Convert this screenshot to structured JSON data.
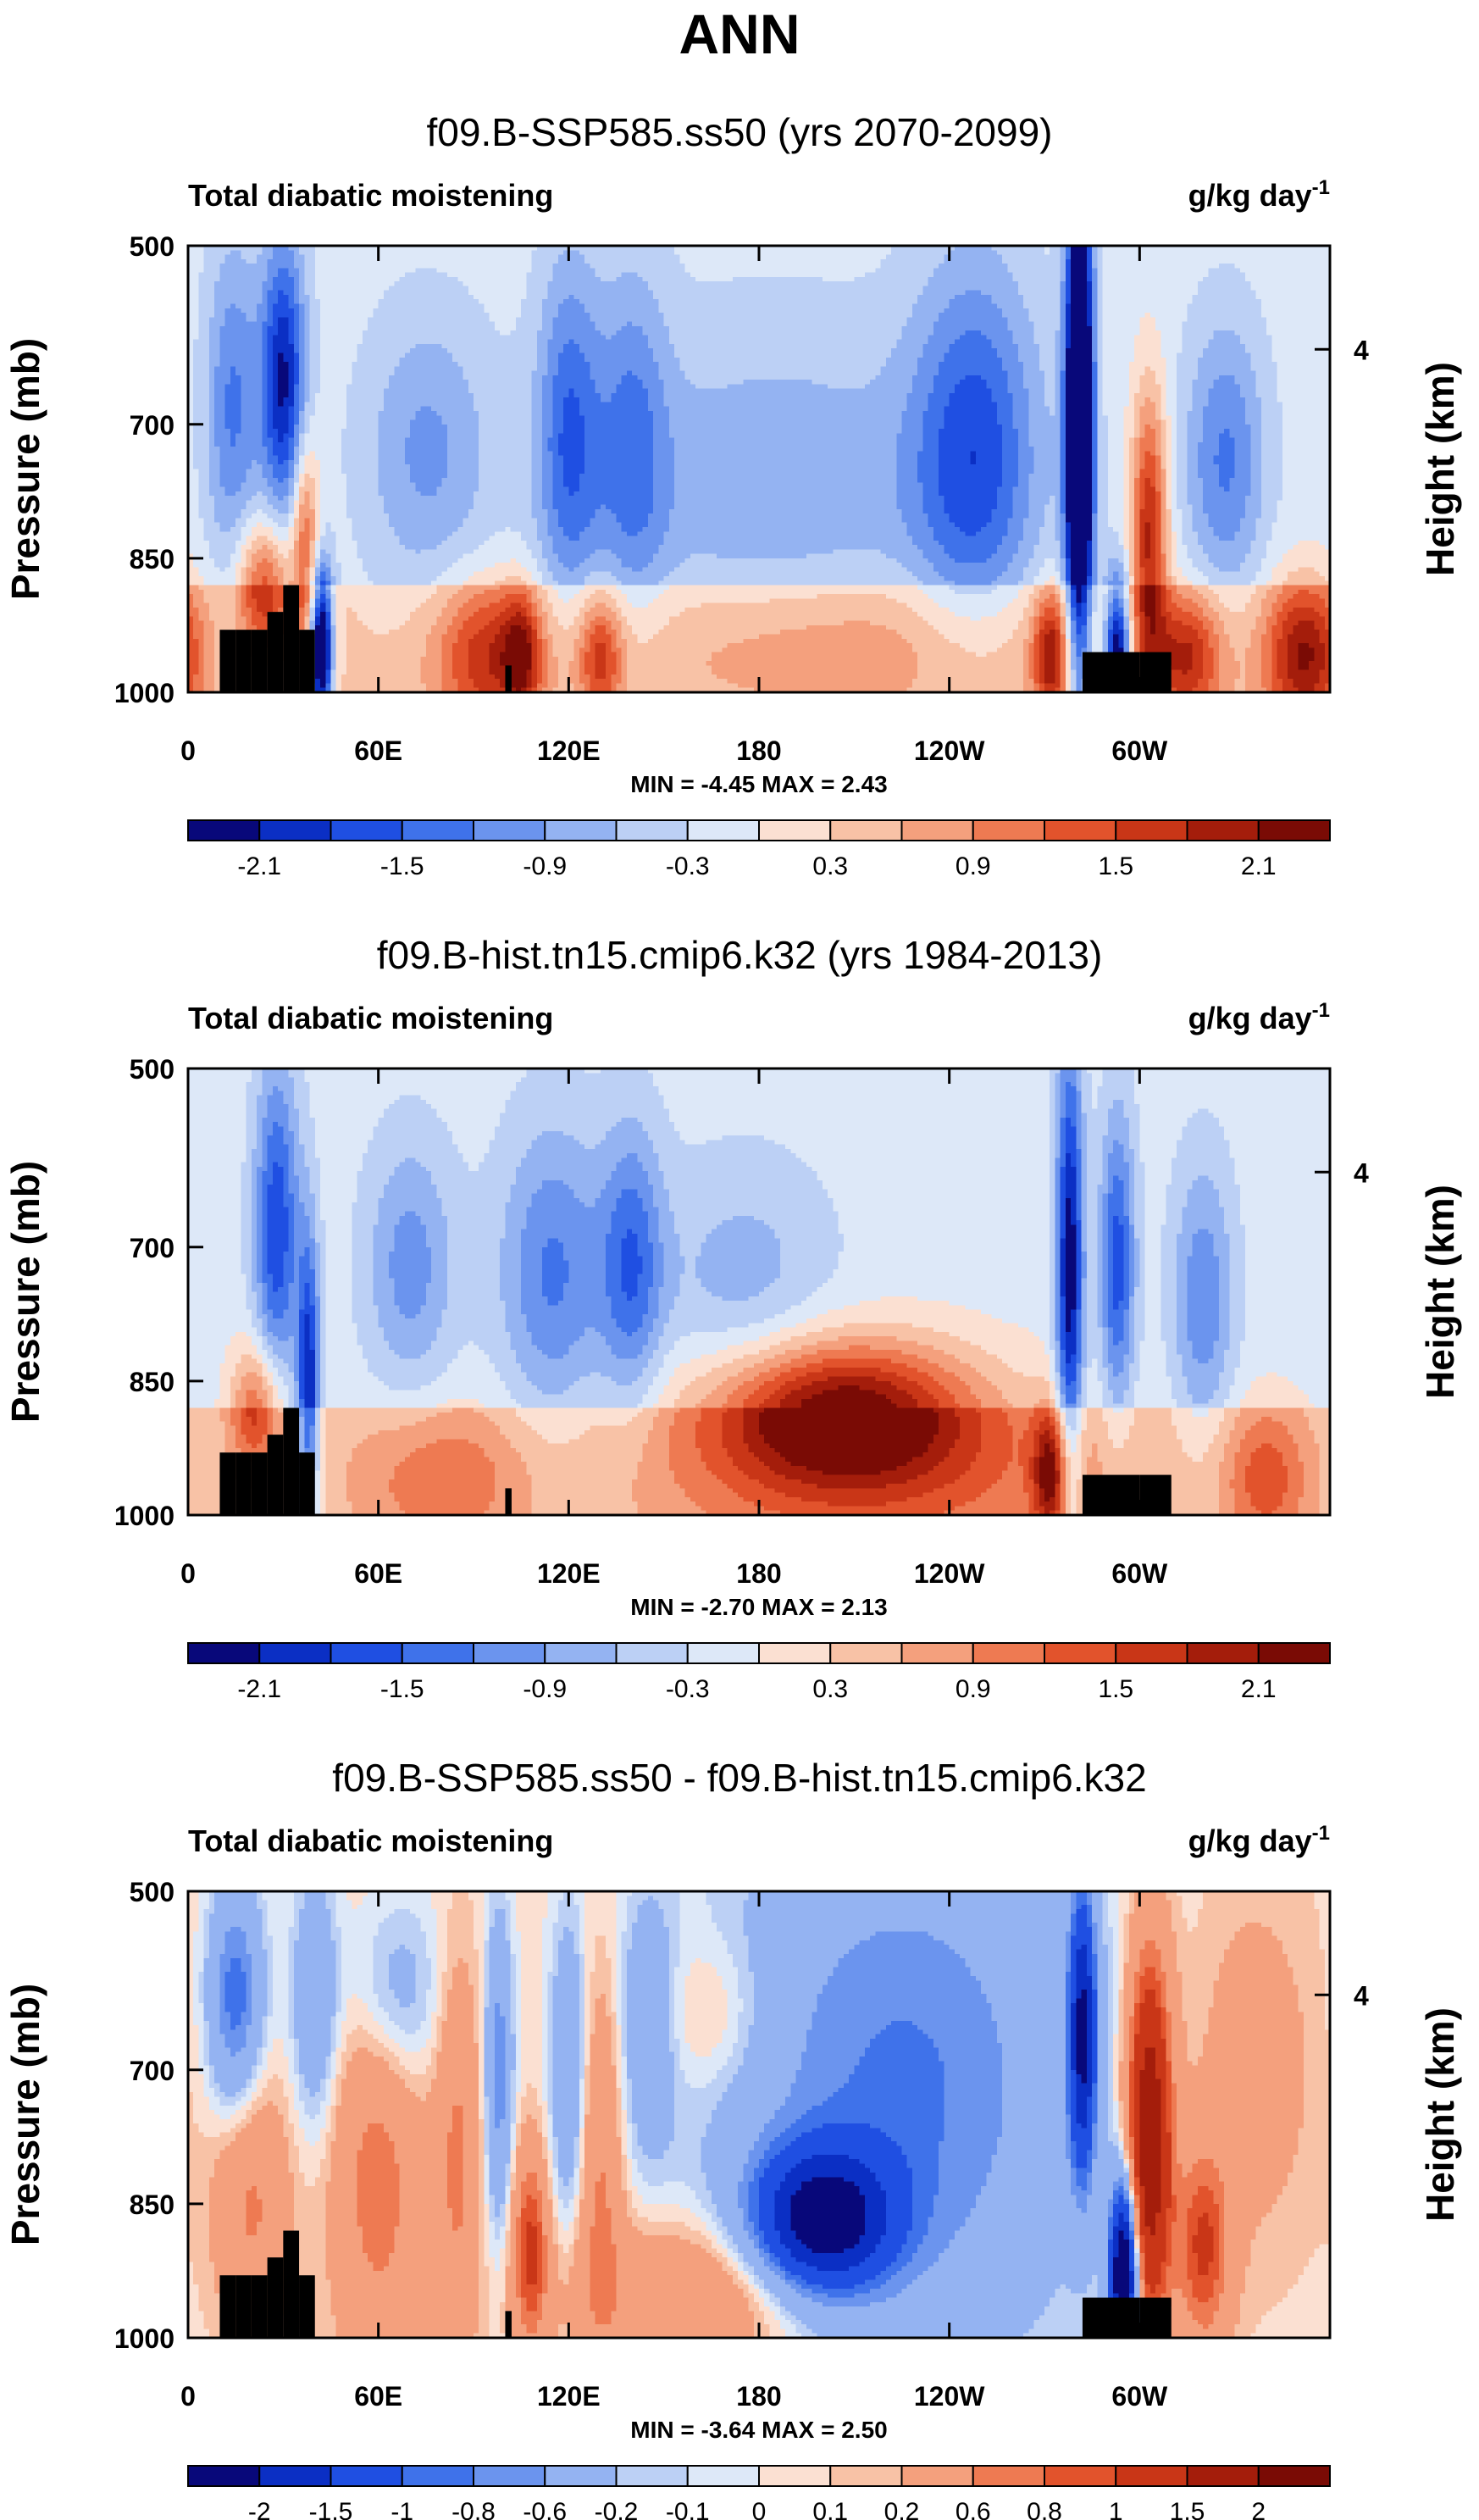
{
  "figure_title": "ANN",
  "colors": {
    "blue_scale": [
      "#08087a",
      "#0b2fc4",
      "#1f4fe2",
      "#3f72ea",
      "#6b94ee",
      "#94b3f2",
      "#bcd0f5",
      "#dde8f8"
    ],
    "red_scale": [
      "#fbe0d2",
      "#f8c2a6",
      "#f4a07d",
      "#ee7a52",
      "#e2532c",
      "#c93617",
      "#a41d0b",
      "#7a0b05"
    ],
    "terrain": "#000000"
  },
  "chart_data": [
    {
      "type": "heatmap",
      "title": "f09.B-SSP585.ss50 (yrs 2070-2099)",
      "left_label": "Total diabatic moistening",
      "right_label": "g/kg day",
      "right_label_sup": "-1",
      "ylabel": "Pressure (mb)",
      "ylabel_right": "Height (km)",
      "yticks": [
        "500",
        "700",
        "850",
        "1000"
      ],
      "ytick_values": [
        500,
        700,
        850,
        1000
      ],
      "yright_ticks": [
        "4"
      ],
      "yright_tick_pressures": [
        616
      ],
      "xticks": [
        "0",
        "60E",
        "120E",
        "180",
        "120W",
        "60W"
      ],
      "xtick_values": [
        0,
        60,
        120,
        180,
        240,
        300
      ],
      "xlim": [
        0,
        360
      ],
      "ylim": [
        1000,
        500
      ],
      "stats": "MIN = -4.45  MAX =  2.43",
      "colorbar_labels": [
        "-2.1",
        "-1.5",
        "-0.9",
        "-0.3",
        "0.3",
        "0.9",
        "1.5",
        "2.1"
      ],
      "colorbar_levels": [
        -2.4,
        -2.1,
        -1.8,
        -1.5,
        -1.2,
        -0.9,
        -0.6,
        -0.3,
        0,
        0.3,
        0.6,
        0.9,
        1.2,
        1.5,
        1.8,
        2.1
      ],
      "features": [
        {
          "lon": 30,
          "p": 650,
          "amp": -2.0,
          "slon": 5,
          "sp": 110
        },
        {
          "lon": 14,
          "p": 680,
          "amp": -1.1,
          "slon": 6,
          "sp": 130
        },
        {
          "lon": 24,
          "p": 880,
          "amp": 1.6,
          "slon": 6,
          "sp": 50
        },
        {
          "lon": 37,
          "p": 830,
          "amp": 1.4,
          "slon": 3,
          "sp": 80
        },
        {
          "lon": 42,
          "p": 950,
          "amp": -3.4,
          "slon": 2.5,
          "sp": 60
        },
        {
          "lon": 75,
          "p": 730,
          "amp": -0.8,
          "slon": 14,
          "sp": 110
        },
        {
          "lon": 95,
          "p": 960,
          "amp": 1.4,
          "slon": 12,
          "sp": 60
        },
        {
          "lon": 120,
          "p": 710,
          "amp": -1.2,
          "slon": 7,
          "sp": 140
        },
        {
          "lon": 140,
          "p": 720,
          "amp": -0.9,
          "slon": 8,
          "sp": 140
        },
        {
          "lon": 105,
          "p": 960,
          "amp": 1.2,
          "slon": 4,
          "sp": 50
        },
        {
          "lon": 130,
          "p": 960,
          "amp": 1.3,
          "slon": 5,
          "sp": 50
        },
        {
          "lon": 185,
          "p": 780,
          "amp": -0.7,
          "slon": 45,
          "sp": 140
        },
        {
          "lon": 205,
          "p": 950,
          "amp": 0.7,
          "slon": 55,
          "sp": 60
        },
        {
          "lon": 248,
          "p": 730,
          "amp": -1.4,
          "slon": 14,
          "sp": 150
        },
        {
          "lon": 281,
          "p": 710,
          "amp": -3.9,
          "slon": 3,
          "sp": 210
        },
        {
          "lon": 293,
          "p": 960,
          "amp": -3.0,
          "slon": 3,
          "sp": 60
        },
        {
          "lon": 303,
          "p": 820,
          "amp": 2.0,
          "slon": 4,
          "sp": 110
        },
        {
          "lon": 272,
          "p": 960,
          "amp": 1.6,
          "slon": 4,
          "sp": 50
        },
        {
          "lon": 327,
          "p": 740,
          "amp": -1.1,
          "slon": 9,
          "sp": 110
        },
        {
          "lon": 352,
          "p": 960,
          "amp": 1.8,
          "slon": 9,
          "sp": 60
        },
        {
          "lon": 315,
          "p": 960,
          "amp": 1.5,
          "slon": 8,
          "sp": 50
        }
      ]
    },
    {
      "type": "heatmap",
      "title": "f09.B-hist.tn15.cmip6.k32 (yrs 1984-2013)",
      "left_label": "Total diabatic moistening",
      "right_label": "g/kg day",
      "right_label_sup": "-1",
      "ylabel": "Pressure (mb)",
      "ylabel_right": "Height (km)",
      "yticks": [
        "500",
        "700",
        "850",
        "1000"
      ],
      "ytick_values": [
        500,
        700,
        850,
        1000
      ],
      "yright_ticks": [
        "4"
      ],
      "yright_tick_pressures": [
        616
      ],
      "xticks": [
        "0",
        "60E",
        "120E",
        "180",
        "120W",
        "60W"
      ],
      "xtick_values": [
        0,
        60,
        120,
        180,
        240,
        300
      ],
      "xlim": [
        0,
        360
      ],
      "ylim": [
        1000,
        500
      ],
      "stats": "MIN = -2.70  MAX =  2.13",
      "colorbar_labels": [
        "-2.1",
        "-1.5",
        "-0.9",
        "-0.3",
        "0.3",
        "0.9",
        "1.5",
        "2.1"
      ],
      "colorbar_levels": [
        -2.4,
        -2.1,
        -1.8,
        -1.5,
        -1.2,
        -0.9,
        -0.6,
        -0.3,
        0,
        0.3,
        0.6,
        0.9,
        1.2,
        1.5,
        1.8,
        2.1
      ],
      "features": [
        {
          "lon": 28,
          "p": 680,
          "amp": -1.6,
          "slon": 5,
          "sp": 130
        },
        {
          "lon": 38,
          "p": 860,
          "amp": -1.9,
          "slon": 2.5,
          "sp": 120
        },
        {
          "lon": 22,
          "p": 880,
          "amp": 1.4,
          "slon": 6,
          "sp": 50
        },
        {
          "lon": 70,
          "p": 720,
          "amp": -0.9,
          "slon": 10,
          "sp": 100
        },
        {
          "lon": 115,
          "p": 730,
          "amp": -1.1,
          "slon": 12,
          "sp": 120
        },
        {
          "lon": 140,
          "p": 720,
          "amp": -1.2,
          "slon": 7,
          "sp": 110
        },
        {
          "lon": 175,
          "p": 740,
          "amp": -0.6,
          "slon": 20,
          "sp": 100
        },
        {
          "lon": 80,
          "p": 960,
          "amp": 0.8,
          "slon": 20,
          "sp": 60
        },
        {
          "lon": 205,
          "p": 880,
          "amp": 2.0,
          "slon": 28,
          "sp": 55
        },
        {
          "lon": 215,
          "p": 950,
          "amp": 1.0,
          "slon": 50,
          "sp": 80
        },
        {
          "lon": 278,
          "p": 730,
          "amp": -2.2,
          "slon": 3,
          "sp": 180
        },
        {
          "lon": 293,
          "p": 720,
          "amp": -1.5,
          "slon": 4,
          "sp": 120
        },
        {
          "lon": 272,
          "p": 955,
          "amp": 1.6,
          "slon": 4,
          "sp": 50
        },
        {
          "lon": 320,
          "p": 760,
          "amp": -1.0,
          "slon": 7,
          "sp": 110
        },
        {
          "lon": 340,
          "p": 960,
          "amp": 1.0,
          "slon": 10,
          "sp": 60
        }
      ]
    },
    {
      "type": "heatmap",
      "title": "f09.B-SSP585.ss50 - f09.B-hist.tn15.cmip6.k32",
      "left_label": "Total diabatic moistening",
      "right_label": "g/kg day",
      "right_label_sup": "-1",
      "ylabel": "Pressure (mb)",
      "ylabel_right": "Height (km)",
      "yticks": [
        "500",
        "700",
        "850",
        "1000"
      ],
      "ytick_values": [
        500,
        700,
        850,
        1000
      ],
      "yright_ticks": [
        "4"
      ],
      "yright_tick_pressures": [
        616
      ],
      "xticks": [
        "0",
        "60E",
        "120E",
        "180",
        "120W",
        "60W"
      ],
      "xtick_values": [
        0,
        60,
        120,
        180,
        240,
        300
      ],
      "xlim": [
        0,
        360
      ],
      "ylim": [
        1000,
        500
      ],
      "stats": "MIN = -3.64  MAX =  2.50",
      "colorbar_labels": [
        "-2",
        "-1.5",
        "-1",
        "-0.8",
        "-0.6",
        "-0.2",
        "-0.1",
        "0",
        "0.1",
        "0.2",
        "0.6",
        "0.8",
        "1",
        "1.5",
        "2"
      ],
      "colorbar_levels": [
        -2.5,
        -2,
        -1.5,
        -1,
        -0.8,
        -0.6,
        -0.2,
        -0.1,
        0,
        0.1,
        0.2,
        0.6,
        0.8,
        1,
        1.5,
        2
      ],
      "features": [
        {
          "lon": 15,
          "p": 620,
          "amp": -1.0,
          "slon": 6,
          "sp": 90
        },
        {
          "lon": 40,
          "p": 620,
          "amp": -0.6,
          "slon": 5,
          "sp": 100
        },
        {
          "lon": 20,
          "p": 850,
          "amp": 0.6,
          "slon": 8,
          "sp": 100
        },
        {
          "lon": 60,
          "p": 820,
          "amp": 0.7,
          "slon": 10,
          "sp": 150
        },
        {
          "lon": 65,
          "p": 620,
          "amp": -0.5,
          "slon": 10,
          "sp": 80
        },
        {
          "lon": 85,
          "p": 800,
          "amp": 0.6,
          "slon": 5,
          "sp": 150
        },
        {
          "lon": 98,
          "p": 700,
          "amp": -0.8,
          "slon": 3,
          "sp": 120
        },
        {
          "lon": 108,
          "p": 900,
          "amp": 1.0,
          "slon": 4,
          "sp": 80
        },
        {
          "lon": 120,
          "p": 700,
          "amp": -0.6,
          "slon": 4,
          "sp": 120
        },
        {
          "lon": 130,
          "p": 820,
          "amp": 0.6,
          "slon": 5,
          "sp": 150
        },
        {
          "lon": 145,
          "p": 650,
          "amp": -0.5,
          "slon": 6,
          "sp": 100
        },
        {
          "lon": 165,
          "p": 640,
          "amp": 0.3,
          "slon": 12,
          "sp": 60
        },
        {
          "lon": 225,
          "p": 720,
          "amp": -0.9,
          "slon": 40,
          "sp": 220
        },
        {
          "lon": 200,
          "p": 870,
          "amp": -2.2,
          "slon": 15,
          "sp": 55
        },
        {
          "lon": 165,
          "p": 950,
          "amp": 0.6,
          "slon": 30,
          "sp": 60
        },
        {
          "lon": 282,
          "p": 660,
          "amp": -2.0,
          "slon": 3,
          "sp": 110
        },
        {
          "lon": 303,
          "p": 780,
          "amp": 2.0,
          "slon": 5,
          "sp": 150
        },
        {
          "lon": 295,
          "p": 930,
          "amp": -3.0,
          "slon": 3,
          "sp": 70
        },
        {
          "lon": 320,
          "p": 900,
          "amp": 1.0,
          "slon": 6,
          "sp": 80
        },
        {
          "lon": 335,
          "p": 700,
          "amp": 0.3,
          "slon": 15,
          "sp": 150
        }
      ]
    }
  ]
}
